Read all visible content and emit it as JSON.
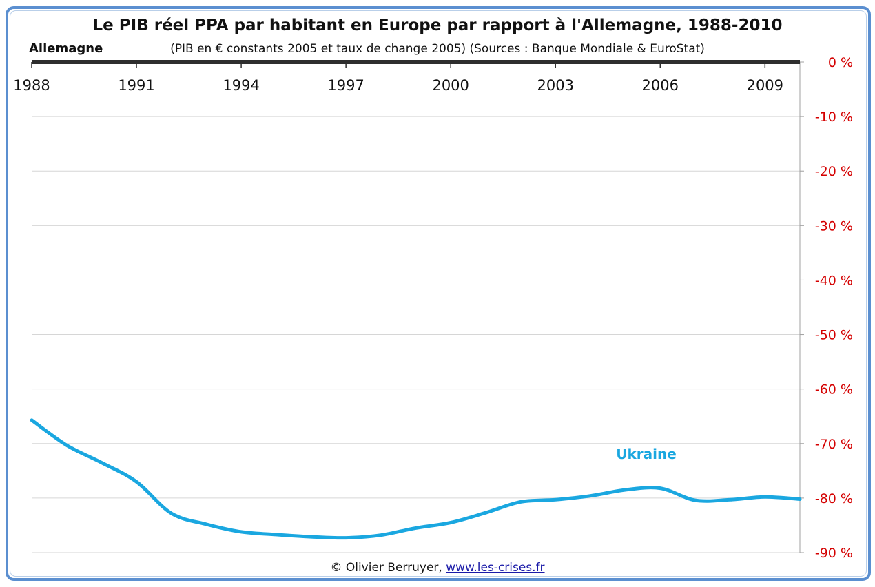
{
  "chart_data": {
    "type": "line",
    "title": "Le PIB réel PPA par habitant en Europe par rapport à l'Allemagne, 1988-2010",
    "subtitle": "(PIB en € constants 2005 et taux de change 2005) (Sources : Banque Mondiale & EuroStat)",
    "reference_label": "Allemagne",
    "x_ticks": [
      "1988",
      "1991",
      "1994",
      "1997",
      "2000",
      "2003",
      "2006",
      "2009"
    ],
    "y_ticks": [
      "0 %",
      "-10 %",
      "-20 %",
      "-30 %",
      "-40 %",
      "-50 %",
      "-60 %",
      "-70 %",
      "-80 %",
      "-90 %"
    ],
    "xlim": [
      1988,
      2010
    ],
    "ylim": [
      -90,
      0
    ],
    "grid": true,
    "series": [
      {
        "name": "Ukraine",
        "color": "#1aa7e0",
        "x": [
          1988,
          1989,
          1990,
          1991,
          1992,
          1993,
          1994,
          1995,
          1996,
          1997,
          1998,
          1999,
          2000,
          2001,
          2002,
          2003,
          2004,
          2005,
          2006,
          2007,
          2008,
          2009,
          2010
        ],
        "values": [
          -65.7,
          -70.3,
          -73.5,
          -77.0,
          -82.8,
          -84.8,
          -86.2,
          -86.7,
          -87.1,
          -87.3,
          -86.8,
          -85.5,
          -84.5,
          -82.7,
          -80.7,
          -80.3,
          -79.6,
          -78.5,
          -78.2,
          -80.4,
          -80.3,
          -79.8,
          -80.2
        ]
      }
    ]
  },
  "credit": {
    "author": "© Olivier Berruyer,",
    "link": "www.les-crises.fr"
  }
}
